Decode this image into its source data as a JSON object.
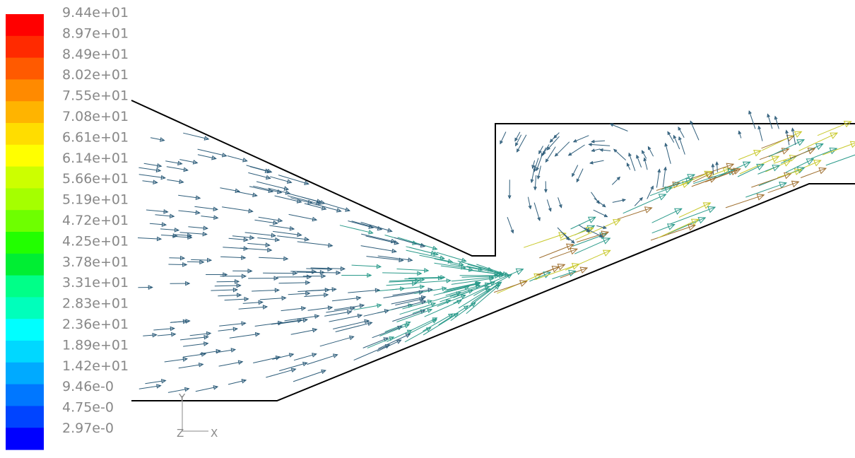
{
  "colorbar": {
    "colors": [
      "#ff0000",
      "#ff2a00",
      "#ff5a00",
      "#ff8a00",
      "#ffb400",
      "#ffdd00",
      "#ffff00",
      "#ccff00",
      "#a5ff00",
      "#6eff00",
      "#22ff00",
      "#00ee33",
      "#00ff88",
      "#00ffbb",
      "#00ffff",
      "#00d8ff",
      "#00aaff",
      "#0077ff",
      "#0044ff",
      "#0000ff"
    ],
    "labels": [
      "9.44e+01",
      "8.97e+01",
      "8.49e+01",
      "8.02e+01",
      "7.55e+01",
      "7.08e+01",
      "6.61e+01",
      "6.14e+01",
      "5.66e+01",
      "5.19e+01",
      "4.72e+01",
      "4.25e+01",
      "3.78e+01",
      "3.31e+01",
      "2.83e+01",
      "2.36e+01",
      "1.89e+01",
      "1.42e+01",
      "9.46e-0",
      "4.75e-0",
      "2.97e-0"
    ]
  },
  "axes": {
    "y_label": "Y",
    "z_label": "Z",
    "x_label": "X"
  },
  "vector_colors": {
    "slow": "#2e5d7a",
    "medium": "#2a9a8a",
    "fast": "#c8c82a",
    "fastest": "#a07030"
  }
}
